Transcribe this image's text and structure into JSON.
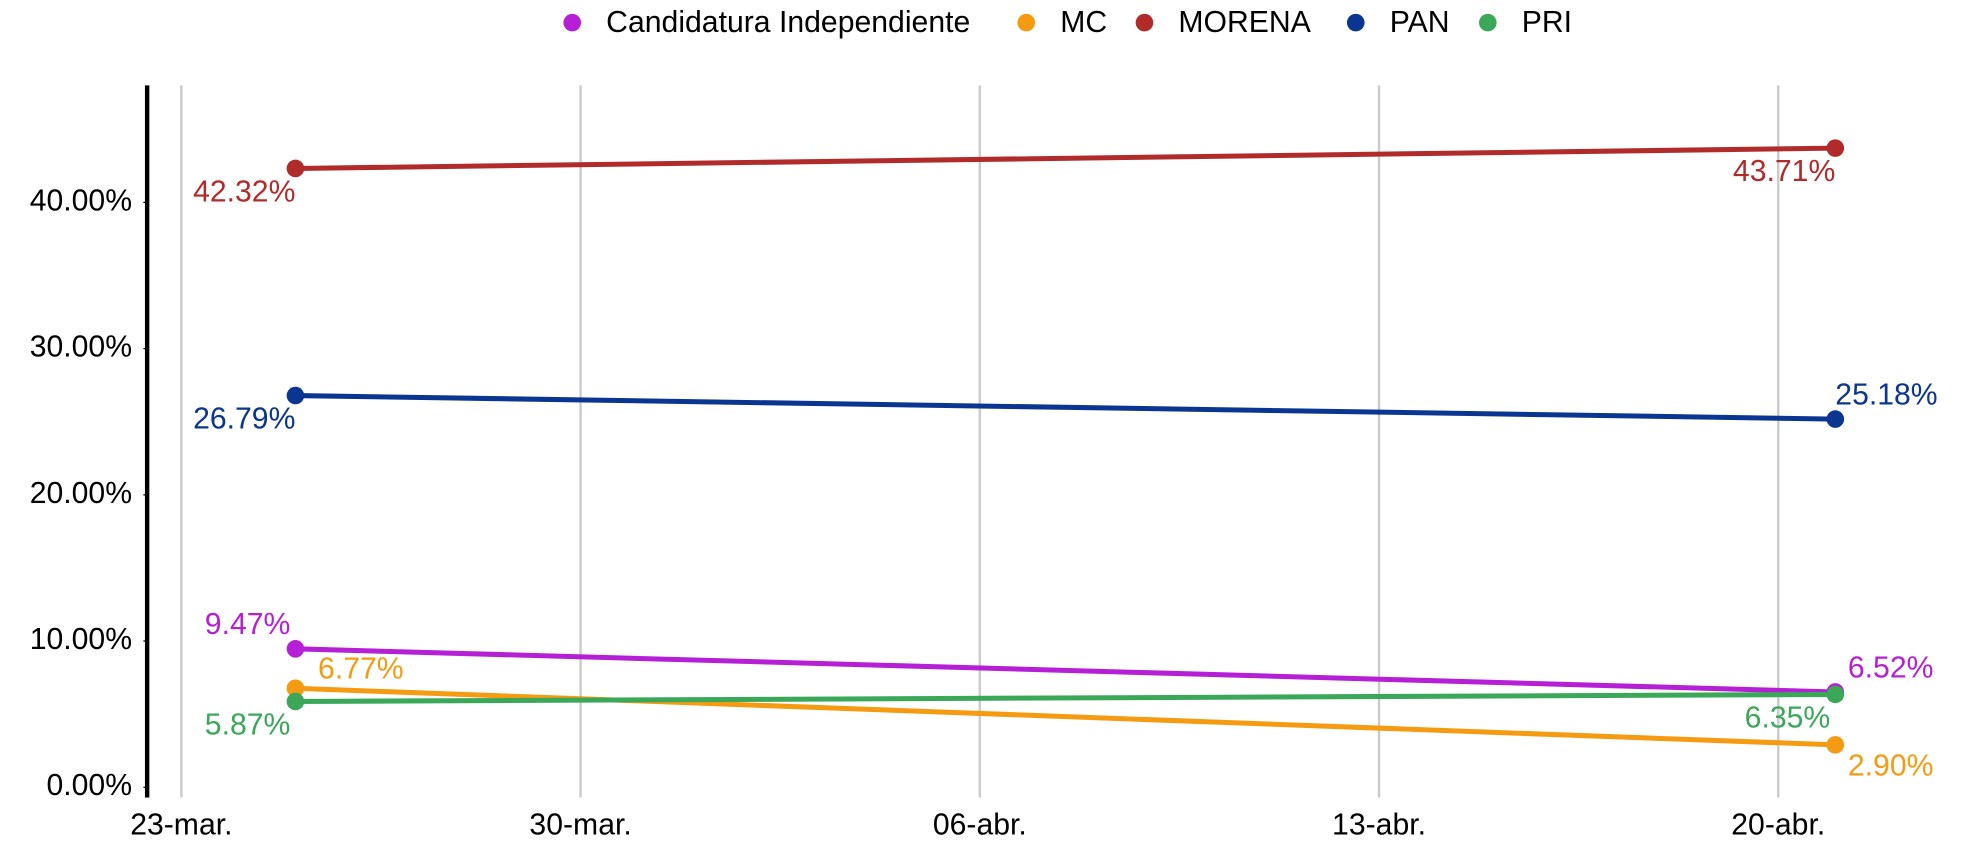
{
  "chart_data": {
    "type": "line",
    "x": [
      2,
      29
    ],
    "xlim": [
      -0.6,
      31
    ],
    "xticks": [
      {
        "value": 0,
        "label": "23-mar."
      },
      {
        "value": 7,
        "label": "30-mar."
      },
      {
        "value": 14,
        "label": "06-abr."
      },
      {
        "value": 21,
        "label": "13-abr."
      },
      {
        "value": 28,
        "label": "20-abr."
      }
    ],
    "ylim": [
      -0.7,
      48
    ],
    "yticks": [
      {
        "value": 0,
        "label": "0.00%"
      },
      {
        "value": 10,
        "label": "10.00%"
      },
      {
        "value": 20,
        "label": "20.00%"
      },
      {
        "value": 30,
        "label": "30.00%"
      },
      {
        "value": 40,
        "label": "40.00%"
      }
    ],
    "grid": "x",
    "legend": "top",
    "series": [
      {
        "name": "Candidatura Independiente",
        "color": "#b51fd6",
        "values": [
          9.47,
          6.52
        ],
        "value_labels": [
          "9.47%",
          "6.52%"
        ]
      },
      {
        "name": "MC",
        "color": "#f59b12",
        "values": [
          6.77,
          2.9
        ],
        "value_labels": [
          "6.77%",
          "2.90%"
        ]
      },
      {
        "name": "MORENA",
        "color": "#b22b2b",
        "values": [
          42.32,
          43.71
        ],
        "value_labels": [
          "42.32%",
          "43.71%"
        ]
      },
      {
        "name": "PAN",
        "color": "#0a3591",
        "values": [
          26.79,
          25.18
        ],
        "value_labels": [
          "26.79%",
          "25.18%"
        ]
      },
      {
        "name": "PRI",
        "color": "#3aa858",
        "values": [
          5.87,
          6.35
        ],
        "value_labels": [
          "5.87%",
          "6.35%"
        ]
      }
    ]
  }
}
